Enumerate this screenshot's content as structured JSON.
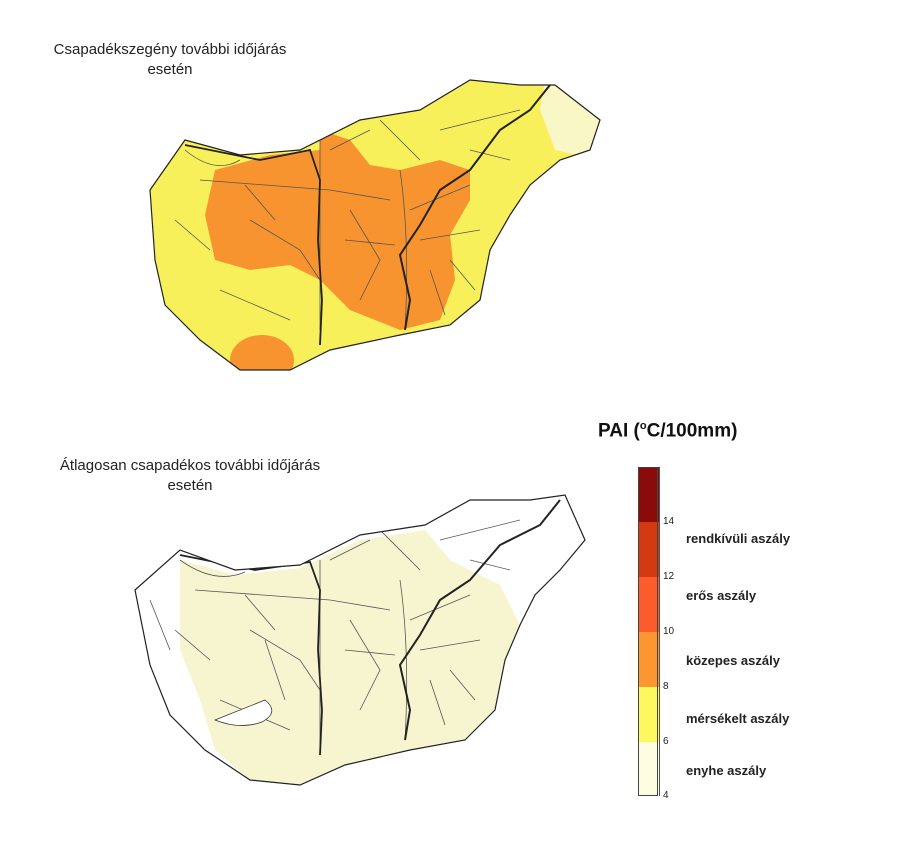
{
  "maps": {
    "top": {
      "title_line1": "Csapadékszegény további időjárás",
      "title_line2": "esetén"
    },
    "bottom": {
      "title_line1": "Átlagosan csapadékos további időjárás",
      "title_line2": "esetén"
    }
  },
  "legend": {
    "title_main": "PAI (",
    "title_sup": "o",
    "title_rest": "C/100mm)",
    "ticks": [
      "14",
      "12",
      "10",
      "8",
      "6",
      "4"
    ],
    "classes": [
      {
        "label": "rendkívüli aszály",
        "color": "#d43a12"
      },
      {
        "label": "erős aszály",
        "color": "#fc5b2c"
      },
      {
        "label": "közepes aszály",
        "color": "#fb9631"
      },
      {
        "label": "mérsékelt aszály",
        "color": "#fcf85e"
      },
      {
        "label": "enyhe aszály",
        "color": "#fdfde2"
      }
    ],
    "top_color": "#8b0a0a"
  },
  "colors": {
    "boundary": "#222222",
    "rivers": "#555555",
    "top_fill": "#f8f05a",
    "top_orange": "#f79430",
    "bottom_fill": "#f7f5d0"
  }
}
